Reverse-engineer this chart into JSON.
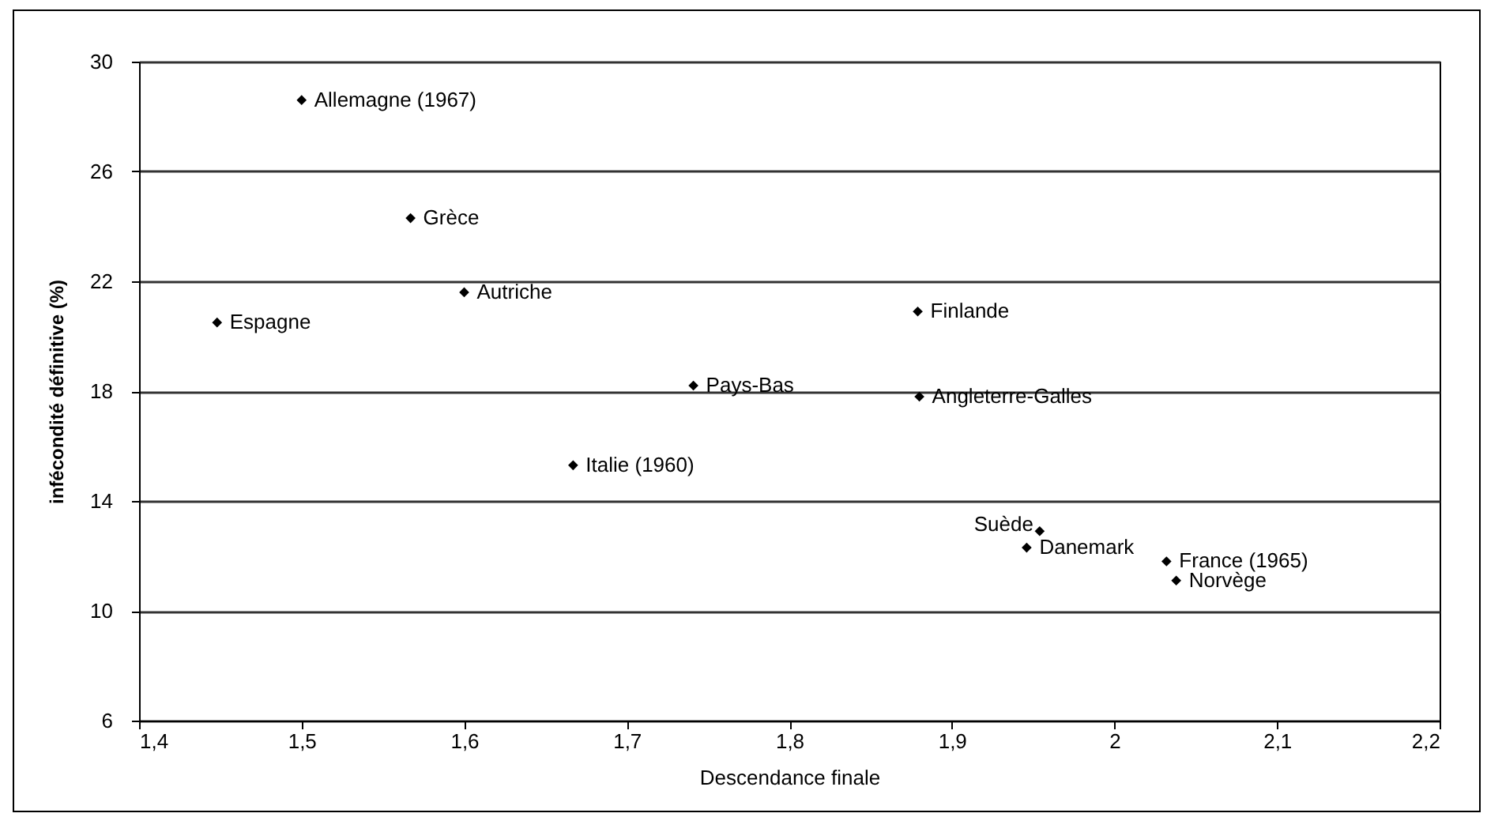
{
  "chart_data": {
    "type": "scatter",
    "xlabel": "Descendance finale",
    "ylabel": "infécondité définitive (%)",
    "x": [
      1.5,
      1.567,
      1.6,
      1.448,
      1.741,
      1.879,
      1.88,
      1.667,
      1.954,
      1.946,
      2.032,
      2.038
    ],
    "series": [
      {
        "color": "#000000",
        "values": [
          28.6,
          24.3,
          21.6,
          20.5,
          18.2,
          20.9,
          17.8,
          15.3,
          12.9,
          12.3,
          11.8,
          11.1
        ]
      }
    ],
    "marker": "diamond",
    "grid": "y",
    "xlim": [
      1.4,
      2.2
    ],
    "xticks": [
      {
        "value": 1.4,
        "label": "1,4"
      },
      {
        "value": 1.5,
        "label": "1,5"
      },
      {
        "value": 1.6,
        "label": "1,6"
      },
      {
        "value": 1.7,
        "label": "1,7"
      },
      {
        "value": 1.8,
        "label": "1,8"
      },
      {
        "value": 1.9,
        "label": "1,9"
      },
      2,
      {
        "value": 2.1,
        "label": "2,1"
      },
      {
        "value": 2.2,
        "label": "2,2"
      }
    ],
    "ylim": [
      6,
      30
    ],
    "yticks": [
      6,
      10,
      14,
      18,
      22,
      26,
      30
    ],
    "annotations": [
      {
        "text": "Allemagne (1967)",
        "x": 1.5,
        "y": 28.6
      },
      {
        "text": "Grèce",
        "x": 1.567,
        "y": 24.3
      },
      {
        "text": "Autriche",
        "x": 1.6,
        "y": 21.6
      },
      {
        "text": "Espagne",
        "x": 1.448,
        "y": 20.5
      },
      {
        "text": "Pays-Bas",
        "x": 1.741,
        "y": 18.2
      },
      {
        "text": "Finlande",
        "x": 1.879,
        "y": 20.9
      },
      {
        "text": "Angleterre-Galles",
        "x": 1.88,
        "y": 17.8
      },
      {
        "text": "Italie (1960)",
        "x": 1.667,
        "y": 15.3
      },
      {
        "text": "Suède",
        "x": 1.954,
        "y": 12.9
      },
      {
        "text": "Danemark",
        "x": 1.946,
        "y": 12.3
      },
      {
        "text": "France (1965)",
        "x": 2.032,
        "y": 11.8
      },
      {
        "text": "Norvège",
        "x": 2.038,
        "y": 11.1
      }
    ]
  }
}
